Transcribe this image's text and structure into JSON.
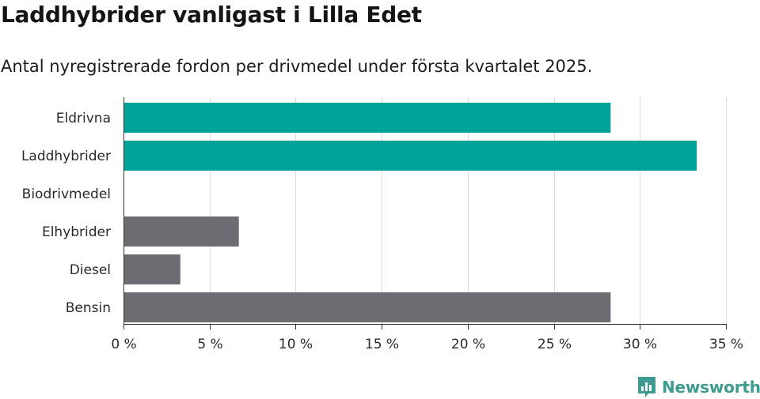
{
  "header": {
    "title": "Laddhybrider vanligast i Lilla Edet",
    "subtitle": "Antal nyregistrerade fordon per drivmedel under första kvartalet 2025."
  },
  "brand": {
    "name": "Newsworthy",
    "color": "#3d9b8f"
  },
  "chart_data": {
    "type": "bar",
    "orientation": "horizontal",
    "title": "Laddhybrider vanligast i Lilla Edet",
    "subtitle": "Antal nyregistrerade fordon per drivmedel under första kvartalet 2025.",
    "categories": [
      "Eldrivna",
      "Laddhybrider",
      "Biodrivmedel",
      "Elhybrider",
      "Diesel",
      "Bensin"
    ],
    "values": [
      28.3,
      33.3,
      0,
      6.7,
      3.3,
      28.3
    ],
    "bar_colors": [
      "#00a398",
      "#00a398",
      "#6d6c72",
      "#6d6c72",
      "#6d6c72",
      "#6d6c72"
    ],
    "xlim": [
      0,
      35
    ],
    "xticks": [
      0,
      5,
      10,
      15,
      20,
      25,
      30,
      35
    ],
    "xtick_labels": [
      "0 %",
      "5 %",
      "10 %",
      "15 %",
      "20 %",
      "25 %",
      "30 %",
      "35 %"
    ],
    "xlabel": "",
    "ylabel": "",
    "grid": true,
    "legend": "none"
  }
}
